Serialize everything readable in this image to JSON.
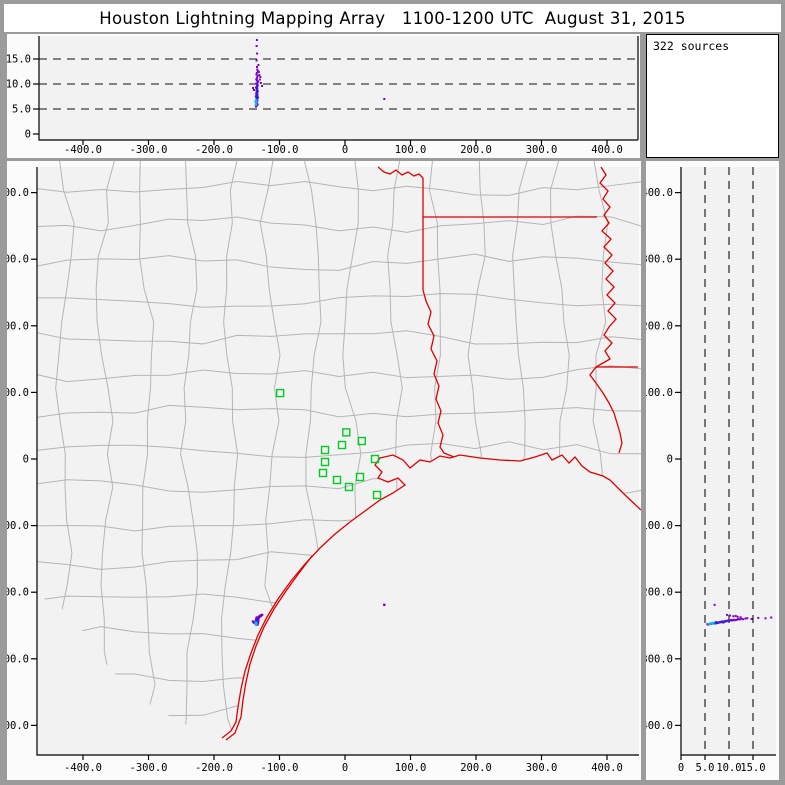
{
  "title": "Houston Lightning Mapping Array   1100-1200 UTC  August 31, 2015",
  "sources_label": "322 sources",
  "colors": {
    "frame_gray": "#9b9b9b",
    "plot_bg": "#f2f2f2",
    "axis": "#000000",
    "dashed_line": "#111111",
    "county_line": "#b5b5b5",
    "state_border": "#e00000",
    "station_green": "#00cc22",
    "source_purple": "#7a00c8",
    "source_blue": "#2424dd",
    "source_cyan": "#00c0e8"
  },
  "axes": {
    "km_ticks": [
      {
        "v": -400,
        "l": "-400.0"
      },
      {
        "v": -300,
        "l": "-300.0"
      },
      {
        "v": -200,
        "l": "-200.0"
      },
      {
        "v": -100,
        "l": "-100.0"
      },
      {
        "v": 0,
        "l": "0"
      },
      {
        "v": 100,
        "l": "100.0"
      },
      {
        "v": 200,
        "l": "200.0"
      },
      {
        "v": 300,
        "l": "300.0"
      },
      {
        "v": 400,
        "l": "400.0"
      }
    ],
    "alt_ticks": [
      {
        "v": 0,
        "l": "0"
      },
      {
        "v": 5,
        "l": "5.0"
      },
      {
        "v": 10,
        "l": "10.0"
      },
      {
        "v": 15,
        "l": "15.0"
      }
    ],
    "alt_dashed": [
      5,
      10,
      15
    ]
  },
  "chart_data": {
    "type": "scatter",
    "title": "Houston Lightning Mapping Array 1100-1200 UTC August 31, 2015",
    "source_count": 322,
    "units": "km",
    "panels": {
      "top": {
        "desc": "altitude vs east-west distance",
        "x_range": [
          -470,
          450
        ],
        "y_range": [
          0,
          20
        ],
        "dashed_alt_km": [
          5,
          10,
          15
        ]
      },
      "main": {
        "desc": "plan view, east-west vs north-south",
        "x_range": [
          -470,
          450
        ],
        "y_range": [
          -445,
          440
        ]
      },
      "right": {
        "desc": "north-south distance vs altitude",
        "x_range": [
          0,
          20
        ],
        "y_range": [
          -445,
          440
        ],
        "dashed_alt_km": [
          5,
          10,
          15
        ]
      }
    },
    "stations_km": [
      [
        -99,
        99
      ],
      [
        2,
        40
      ],
      [
        -4.6,
        21
      ],
      [
        25.6,
        27
      ],
      [
        -30.5,
        13.5
      ],
      [
        -30.5,
        -4.5
      ],
      [
        -33.6,
        -21
      ],
      [
        -12.2,
        -31.5
      ],
      [
        6.1,
        -42
      ],
      [
        22.9,
        -27
      ],
      [
        45.8,
        0
      ],
      [
        48.9,
        -54
      ]
    ],
    "sources": [
      [
        -134.5,
        -238,
        18.8,
        "p"
      ],
      [
        -134.9,
        -239.2,
        17.6,
        "p"
      ],
      [
        -134.2,
        -238.6,
        16.1,
        "p"
      ],
      [
        -135,
        -240.1,
        14.7,
        "p"
      ],
      [
        -134.4,
        -239.6,
        13.4,
        "p"
      ],
      [
        -133.9,
        -240.6,
        12.9,
        "p"
      ],
      [
        -134.6,
        -241,
        12.2,
        "p"
      ],
      [
        -135.2,
        -240.3,
        11.9,
        "p"
      ],
      [
        -133.6,
        -241.5,
        11.6,
        "p"
      ],
      [
        -134.1,
        -242,
        11.3,
        "p"
      ],
      [
        -134.9,
        -241.3,
        11,
        "p"
      ],
      [
        -134.3,
        -242.5,
        10.7,
        "p"
      ],
      [
        -133.4,
        -241.9,
        10.4,
        "p"
      ],
      [
        -135.5,
        -242.3,
        10.1,
        "p"
      ],
      [
        -134,
        -243,
        9.9,
        "p"
      ],
      [
        -133.2,
        -242.7,
        9.7,
        "p"
      ],
      [
        -134.7,
        -243.5,
        9.5,
        "p"
      ],
      [
        -135.8,
        -243.1,
        9.3,
        "p"
      ],
      [
        -133.8,
        -244.1,
        9.1,
        "p"
      ],
      [
        -134.2,
        -244.6,
        8.9,
        "p"
      ],
      [
        -135.1,
        -244.3,
        8.7,
        "p"
      ],
      [
        -133,
        -243.9,
        8.5,
        "p"
      ],
      [
        -134.5,
        -245.1,
        8.3,
        "p"
      ],
      [
        -135.6,
        -244.9,
        8.1,
        "p"
      ],
      [
        -133.5,
        -245.6,
        7.9,
        "p"
      ],
      [
        -134.8,
        -246.1,
        7.7,
        "p"
      ],
      [
        -136.2,
        -245.3,
        7.5,
        "p"
      ],
      [
        -132.8,
        -245,
        7.3,
        "p"
      ],
      [
        -134.1,
        -246.6,
        7.1,
        "p"
      ],
      [
        -135.3,
        -246.3,
        6.9,
        "p"
      ],
      [
        -133.7,
        -247.1,
        6.7,
        "p"
      ],
      [
        -136.5,
        -246.9,
        6.5,
        "p"
      ],
      [
        -134.4,
        -247.6,
        6.3,
        "p"
      ],
      [
        -135,
        -247.3,
        6.1,
        "p"
      ],
      [
        -133.3,
        -247.9,
        5.9,
        "p"
      ],
      [
        -134.6,
        -248.5,
        5.7,
        "p"
      ],
      [
        -135.9,
        -248.1,
        5.5,
        "p"
      ],
      [
        -131.5,
        -237.6,
        12.4,
        "p"
      ],
      [
        -130.8,
        -236.9,
        11.8,
        "p"
      ],
      [
        -130,
        -236.1,
        10.9,
        "p"
      ],
      [
        -129.2,
        -235.6,
        11.4,
        "p"
      ],
      [
        -128.5,
        -235.1,
        10.2,
        "p"
      ],
      [
        -139,
        -245.6,
        8.8,
        "p"
      ],
      [
        -140.4,
        -244.1,
        9.2,
        "p"
      ],
      [
        -126.6,
        -234.1,
        9.6,
        "p"
      ],
      [
        -132.2,
        -239,
        13.8,
        "p"
      ],
      [
        -133.1,
        -239.9,
        12.6,
        "p"
      ],
      [
        -135.4,
        -241.7,
        10.9,
        "p"
      ],
      [
        -132.5,
        -242.3,
        10.5,
        "p"
      ],
      [
        60,
        -219,
        7,
        "p"
      ],
      [
        -134.3,
        -243.3,
        9.4,
        "b"
      ],
      [
        -134.9,
        -243.9,
        9,
        "b"
      ],
      [
        -134,
        -244.4,
        8.6,
        "b"
      ],
      [
        -134.6,
        -245,
        8.2,
        "b"
      ],
      [
        -135.2,
        -245.5,
        7.8,
        "b"
      ],
      [
        -133.8,
        -245.9,
        7.6,
        "b"
      ],
      [
        -134.4,
        -246.4,
        7.4,
        "b"
      ],
      [
        -135,
        -247,
        7.2,
        "b"
      ],
      [
        -133.9,
        -242.9,
        10,
        "b"
      ],
      [
        -135.4,
        -245.7,
        6.8,
        "c"
      ],
      [
        -135.8,
        -246.2,
        6.6,
        "c"
      ],
      [
        -135.2,
        -246.7,
        6.4,
        "c"
      ],
      [
        -135.9,
        -247.2,
        6.2,
        "c"
      ],
      [
        -135.5,
        -247.7,
        6,
        "c"
      ],
      [
        -136.1,
        -246.6,
        6.3,
        "c"
      ],
      [
        -135.6,
        -246.9,
        6.6,
        "c"
      ],
      [
        -136.3,
        -247.4,
        5.8,
        "c"
      ]
    ]
  }
}
